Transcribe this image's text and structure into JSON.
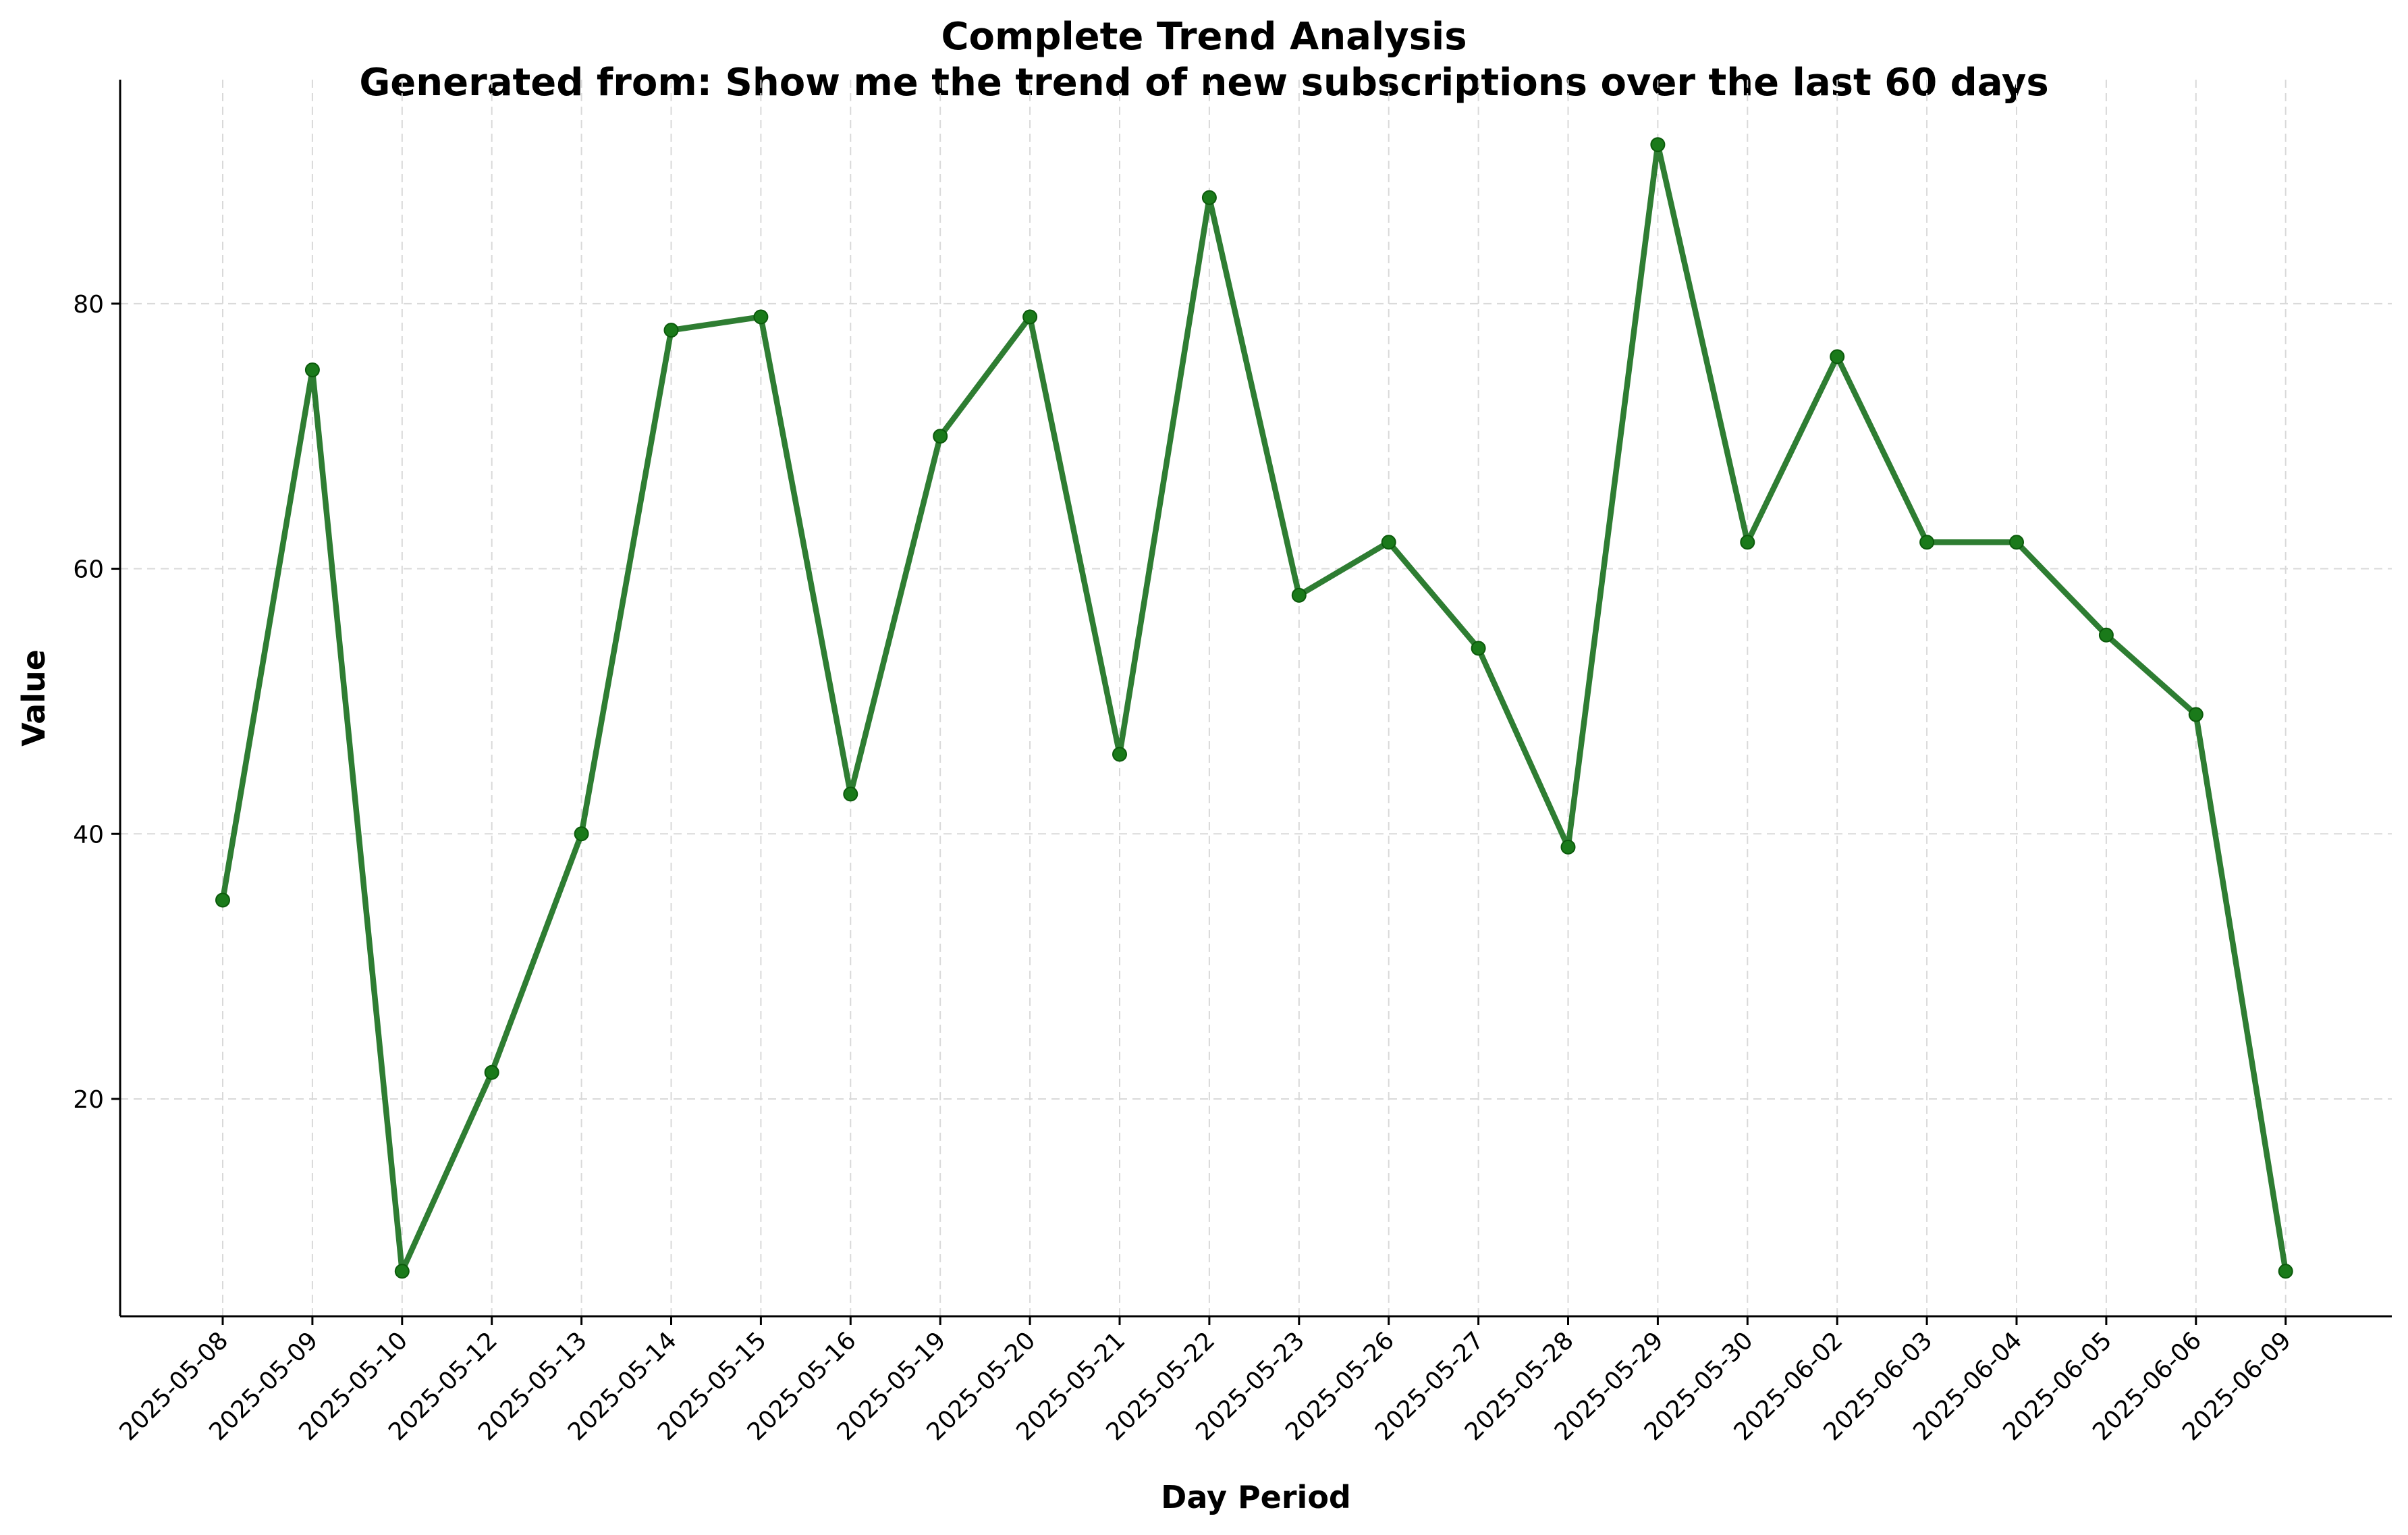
{
  "chart_data": {
    "type": "line",
    "title": "Complete Trend Analysis",
    "subtitle": "Generated from: Show me the trend of new subscriptions over the last 60 days",
    "xlabel": "Day Period",
    "ylabel": "Value",
    "categories": [
      "2025-05-08",
      "2025-05-09",
      "2025-05-10",
      "2025-05-12",
      "2025-05-13",
      "2025-05-14",
      "2025-05-15",
      "2025-05-16",
      "2025-05-19",
      "2025-05-20",
      "2025-05-21",
      "2025-05-22",
      "2025-05-23",
      "2025-05-26",
      "2025-05-27",
      "2025-05-28",
      "2025-05-29",
      "2025-05-30",
      "2025-06-02",
      "2025-06-03",
      "2025-06-04",
      "2025-06-05",
      "2025-06-06",
      "2025-06-09"
    ],
    "series": [
      {
        "values": [
          35,
          75,
          7,
          22,
          40,
          78,
          79,
          43,
          70,
          79,
          46,
          88,
          58,
          62,
          54,
          39,
          92,
          62,
          76,
          62,
          62,
          55,
          49,
          7
        ]
      }
    ],
    "ylim": [
      3.6,
      96.9
    ],
    "yticks": [
      "20",
      "40",
      "60",
      "80"
    ],
    "grid": true,
    "legend": "none",
    "line_color": "#2e7d32",
    "marker_color": "#1a7a1a"
  }
}
